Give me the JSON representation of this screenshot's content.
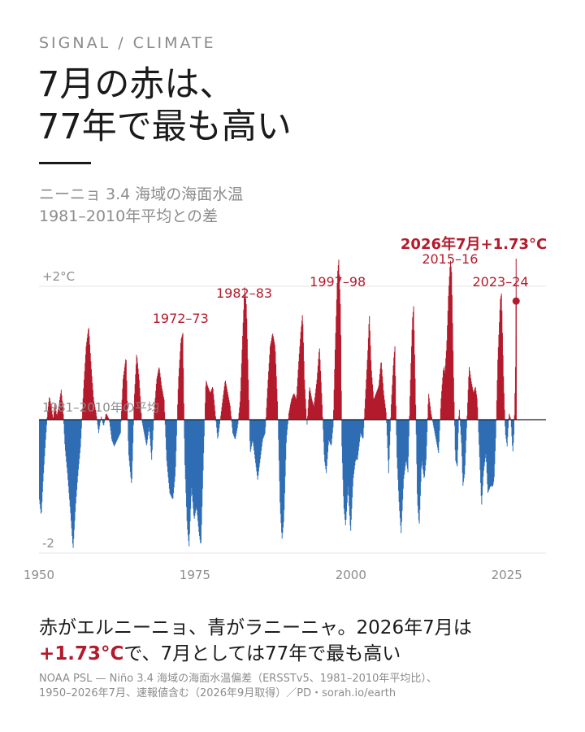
{
  "kicker": "SIGNAL / CLIMATE",
  "title": {
    "line1": "7月の赤は、",
    "line2": "77年で最も高い"
  },
  "subtitle": {
    "line1": "ニーニョ 3.4 海域の海面水温",
    "line2": "1981–2010年平均との差"
  },
  "colors": {
    "warm": "#b31b2c",
    "cool": "#2e6db4",
    "baseline": "#1a1a1a",
    "grid": "#e6e6e6",
    "label": "#8c8c8c"
  },
  "chart_data": {
    "type": "area",
    "x_range": [
      1950,
      2026.6
    ],
    "ylim": [
      -2.1,
      2.05
    ],
    "yticks": [
      {
        "value": 2,
        "label": "+2°C"
      },
      {
        "value": 0,
        "label": "1981–2010年の平均"
      },
      {
        "value": -2,
        "label": "-2"
      }
    ],
    "xticks": [
      {
        "value": 1950,
        "label": "1950"
      },
      {
        "value": 1975,
        "label": "1975"
      },
      {
        "value": 2000,
        "label": "2000"
      },
      {
        "value": 2025,
        "label": "2025"
      }
    ],
    "grid": true,
    "series": [
      {
        "values_approx": [
          [
            1950.0,
            -1.2
          ],
          [
            1950.3,
            -1.45
          ],
          [
            1950.6,
            -0.9
          ],
          [
            1951.0,
            -0.3
          ],
          [
            1951.3,
            0.1
          ],
          [
            1951.6,
            0.35
          ],
          [
            1951.9,
            0.2
          ],
          [
            1952.2,
            0.0
          ],
          [
            1952.5,
            0.25
          ],
          [
            1952.8,
            0.05
          ],
          [
            1953.1,
            0.2
          ],
          [
            1953.5,
            0.45
          ],
          [
            1953.8,
            0.15
          ],
          [
            1954.1,
            -0.4
          ],
          [
            1954.5,
            -0.8
          ],
          [
            1955.0,
            -1.4
          ],
          [
            1955.4,
            -1.95
          ],
          [
            1955.8,
            -1.3
          ],
          [
            1956.2,
            -0.8
          ],
          [
            1956.6,
            -0.4
          ],
          [
            1957.1,
            0.5
          ],
          [
            1957.5,
            1.1
          ],
          [
            1957.9,
            1.4
          ],
          [
            1958.3,
            0.8
          ],
          [
            1958.7,
            0.3
          ],
          [
            1959.1,
            0.1
          ],
          [
            1959.5,
            -0.2
          ],
          [
            1959.9,
            0.05
          ],
          [
            1960.3,
            -0.1
          ],
          [
            1960.7,
            0.1
          ],
          [
            1961.2,
            0.0
          ],
          [
            1961.6,
            -0.3
          ],
          [
            1962.0,
            -0.4
          ],
          [
            1962.5,
            -0.3
          ],
          [
            1963.0,
            -0.2
          ],
          [
            1963.4,
            0.6
          ],
          [
            1963.9,
            0.95
          ],
          [
            1964.3,
            -0.5
          ],
          [
            1964.8,
            -1.0
          ],
          [
            1965.2,
            0.3
          ],
          [
            1965.6,
            1.0
          ],
          [
            1966.0,
            0.6
          ],
          [
            1966.4,
            0.0
          ],
          [
            1966.8,
            -0.2
          ],
          [
            1967.2,
            -0.4
          ],
          [
            1967.6,
            -0.1
          ],
          [
            1968.0,
            -0.6
          ],
          [
            1968.4,
            0.1
          ],
          [
            1968.8,
            0.6
          ],
          [
            1969.2,
            0.8
          ],
          [
            1969.6,
            0.5
          ],
          [
            1970.0,
            0.3
          ],
          [
            1970.4,
            -0.6
          ],
          [
            1970.9,
            -1.1
          ],
          [
            1971.4,
            -1.2
          ],
          [
            1971.8,
            -0.8
          ],
          [
            1972.3,
            0.6
          ],
          [
            1972.7,
            1.2
          ],
          [
            1973.0,
            1.3
          ],
          [
            1973.3,
            -0.6
          ],
          [
            1973.7,
            -1.6
          ],
          [
            1974.0,
            -1.9
          ],
          [
            1974.4,
            -1.0
          ],
          [
            1974.8,
            -1.5
          ],
          [
            1975.2,
            -1.3
          ],
          [
            1975.6,
            -1.7
          ],
          [
            1975.9,
            -1.9
          ],
          [
            1976.3,
            -0.6
          ],
          [
            1976.7,
            0.6
          ],
          [
            1977.0,
            0.5
          ],
          [
            1977.4,
            0.4
          ],
          [
            1977.8,
            0.5
          ],
          [
            1978.2,
            0.1
          ],
          [
            1978.6,
            -0.3
          ],
          [
            1979.0,
            0.0
          ],
          [
            1979.4,
            0.3
          ],
          [
            1979.8,
            0.6
          ],
          [
            1980.2,
            0.4
          ],
          [
            1980.6,
            0.2
          ],
          [
            1981.0,
            -0.2
          ],
          [
            1981.4,
            -0.3
          ],
          [
            1981.8,
            -0.1
          ],
          [
            1982.2,
            0.3
          ],
          [
            1982.6,
            1.3
          ],
          [
            1982.9,
            2.0
          ],
          [
            1983.2,
            1.7
          ],
          [
            1983.5,
            0.6
          ],
          [
            1983.8,
            -0.5
          ],
          [
            1984.2,
            -0.3
          ],
          [
            1984.6,
            -0.6
          ],
          [
            1985.0,
            -0.9
          ],
          [
            1985.4,
            -0.6
          ],
          [
            1985.8,
            -0.3
          ],
          [
            1986.2,
            -0.2
          ],
          [
            1986.6,
            0.5
          ],
          [
            1987.0,
            1.1
          ],
          [
            1987.4,
            1.3
          ],
          [
            1987.8,
            1.1
          ],
          [
            1988.2,
            0.2
          ],
          [
            1988.6,
            -1.3
          ],
          [
            1988.9,
            -1.8
          ],
          [
            1989.2,
            -1.5
          ],
          [
            1989.6,
            -0.3
          ],
          [
            1990.0,
            0.1
          ],
          [
            1990.4,
            0.3
          ],
          [
            1990.8,
            0.4
          ],
          [
            1991.2,
            0.3
          ],
          [
            1991.6,
            0.9
          ],
          [
            1991.9,
            1.3
          ],
          [
            1992.2,
            1.6
          ],
          [
            1992.5,
            0.6
          ],
          [
            1992.9,
            -0.1
          ],
          [
            1993.3,
            0.5
          ],
          [
            1993.7,
            0.3
          ],
          [
            1994.0,
            0.2
          ],
          [
            1994.5,
            0.6
          ],
          [
            1994.9,
            1.1
          ],
          [
            1995.3,
            0.3
          ],
          [
            1995.7,
            -0.6
          ],
          [
            1996.0,
            -0.8
          ],
          [
            1996.4,
            -0.3
          ],
          [
            1996.8,
            -0.4
          ],
          [
            1997.1,
            -0.1
          ],
          [
            1997.4,
            1.0
          ],
          [
            1997.8,
            2.2
          ],
          [
            1998.0,
            2.4
          ],
          [
            1998.3,
            1.6
          ],
          [
            1998.5,
            -0.4
          ],
          [
            1998.8,
            -1.3
          ],
          [
            1999.1,
            -1.6
          ],
          [
            1999.5,
            -1.0
          ],
          [
            1999.9,
            -1.7
          ],
          [
            2000.3,
            -0.9
          ],
          [
            2000.7,
            -0.6
          ],
          [
            2001.0,
            -0.6
          ],
          [
            2001.5,
            -0.2
          ],
          [
            2001.9,
            -0.3
          ],
          [
            2002.3,
            0.4
          ],
          [
            2002.7,
            1.1
          ],
          [
            2002.9,
            1.6
          ],
          [
            2003.2,
            0.8
          ],
          [
            2003.6,
            0.3
          ],
          [
            2004.0,
            0.4
          ],
          [
            2004.4,
            0.5
          ],
          [
            2004.8,
            0.9
          ],
          [
            2005.2,
            0.4
          ],
          [
            2005.6,
            0.1
          ],
          [
            2006.0,
            -0.8
          ],
          [
            2006.4,
            0.2
          ],
          [
            2006.8,
            0.9
          ],
          [
            2007.0,
            1.1
          ],
          [
            2007.3,
            -0.5
          ],
          [
            2007.7,
            -1.3
          ],
          [
            2008.0,
            -1.7
          ],
          [
            2008.4,
            -0.9
          ],
          [
            2008.8,
            -0.6
          ],
          [
            2009.1,
            -0.8
          ],
          [
            2009.4,
            0.3
          ],
          [
            2009.8,
            1.5
          ],
          [
            2010.0,
            1.7
          ],
          [
            2010.3,
            0.4
          ],
          [
            2010.6,
            -1.2
          ],
          [
            2010.9,
            -1.6
          ],
          [
            2011.3,
            -0.6
          ],
          [
            2011.7,
            -0.9
          ],
          [
            2012.0,
            -0.6
          ],
          [
            2012.4,
            0.4
          ],
          [
            2012.8,
            0.1
          ],
          [
            2013.2,
            -0.1
          ],
          [
            2013.6,
            -0.3
          ],
          [
            2014.0,
            -0.5
          ],
          [
            2014.4,
            0.3
          ],
          [
            2014.8,
            0.8
          ],
          [
            2015.0,
            0.7
          ],
          [
            2015.3,
            1.1
          ],
          [
            2015.6,
            1.9
          ],
          [
            2015.9,
            2.4
          ],
          [
            2016.1,
            2.2
          ],
          [
            2016.4,
            0.7
          ],
          [
            2016.7,
            -0.6
          ],
          [
            2017.0,
            -0.7
          ],
          [
            2017.3,
            0.2
          ],
          [
            2017.7,
            -0.4
          ],
          [
            2017.9,
            -1.0
          ],
          [
            2018.2,
            -0.8
          ],
          [
            2018.6,
            0.1
          ],
          [
            2018.9,
            0.8
          ],
          [
            2019.2,
            0.6
          ],
          [
            2019.6,
            0.4
          ],
          [
            2019.9,
            0.5
          ],
          [
            2020.2,
            0.3
          ],
          [
            2020.6,
            -0.6
          ],
          [
            2020.9,
            -1.3
          ],
          [
            2021.2,
            -0.8
          ],
          [
            2021.6,
            -0.5
          ],
          [
            2021.9,
            -1.1
          ],
          [
            2022.3,
            -1.0
          ],
          [
            2022.7,
            -1.0
          ],
          [
            2022.9,
            -0.9
          ],
          [
            2023.2,
            -0.2
          ],
          [
            2023.5,
            0.9
          ],
          [
            2023.9,
            1.8
          ],
          [
            2024.1,
            1.9
          ],
          [
            2024.4,
            0.7
          ],
          [
            2024.7,
            -0.2
          ],
          [
            2025.0,
            -0.4
          ],
          [
            2025.3,
            0.1
          ],
          [
            2025.6,
            0.0
          ],
          [
            2025.9,
            -0.5
          ],
          [
            2026.1,
            -0.2
          ],
          [
            2026.3,
            0.6
          ],
          [
            2026.5,
            1.73
          ]
        ]
      }
    ],
    "annotations": [
      {
        "year": 1972.7,
        "label": "1972–73"
      },
      {
        "year": 1982.9,
        "label": "1982–83"
      },
      {
        "year": 1997.9,
        "label": "1997–98"
      },
      {
        "year": 2015.9,
        "label": "2015–16"
      },
      {
        "year": 2024.0,
        "label": "2023–24"
      }
    ],
    "highlight": {
      "x": 2026.5,
      "y": 1.73,
      "label": "2026年7月+1.73°C"
    }
  },
  "footline": {
    "line1": "赤がエルニーニョ、青がラニーニャ。2026年7月は",
    "line2_hl": "+1.73°C",
    "line2_rest": "で、7月としては77年で最も高い"
  },
  "source": {
    "line1": "NOAA PSL — Niño 3.4 海域の海面水温偏差（ERSSTv5、1981–2010年平均比）、",
    "line2": "1950–2026年7月、速報値含む（2026年9月取得）／PD・sorah.io/earth"
  }
}
